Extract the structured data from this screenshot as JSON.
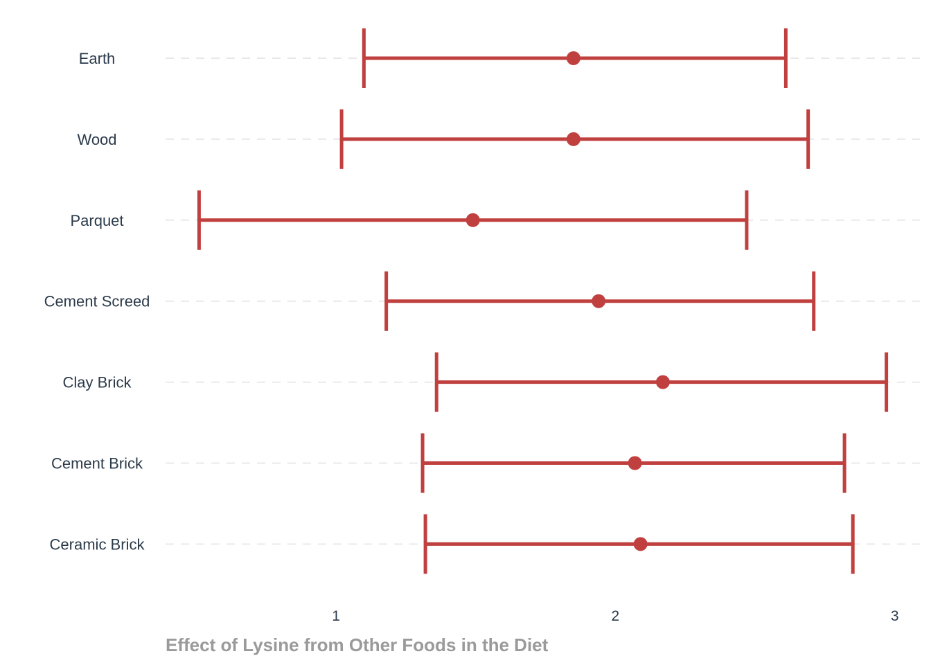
{
  "chart_data": {
    "type": "errorbar",
    "xlabel": "Effect of Lysine from Other Foods in the Diet",
    "ylabel": "",
    "title": "",
    "xlim": [
      0.39,
      3.09
    ],
    "xticks": [
      1,
      2,
      3
    ],
    "grid": "horizontal dashed",
    "legend": "none",
    "color": "#c0403f",
    "categories": [
      "Earth",
      "Wood",
      "Parquet",
      "Cement Screed",
      "Clay Brick",
      "Cement Brick",
      "Ceramic Brick"
    ],
    "estimate": [
      1.85,
      1.85,
      1.49,
      1.94,
      2.17,
      2.07,
      2.09
    ],
    "lower": [
      1.1,
      1.02,
      0.51,
      1.18,
      1.36,
      1.31,
      1.32
    ],
    "upper": [
      2.61,
      2.69,
      2.47,
      2.71,
      2.97,
      2.82,
      2.85
    ]
  }
}
